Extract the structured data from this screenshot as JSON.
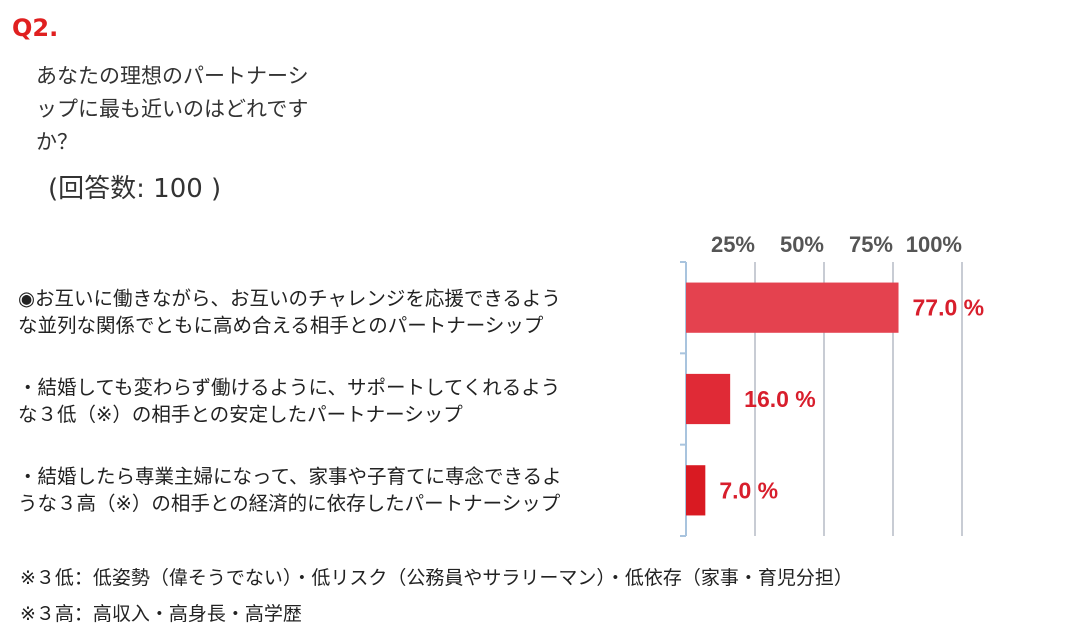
{
  "question_number": "Q2.",
  "question_lines": [
    "あなたの理想のパートナーシ",
    "ップに最も近いのはどれです",
    "か？"
  ],
  "respondents": "(回答数: 100 )",
  "chart_data": {
    "type": "bar",
    "orientation": "horizontal",
    "categories": [
      [
        "◉お互いに働きながら、お互いのチャレンジを応援できるよう",
        "な並列な関係でともに高め合える相手とのパートナーシップ"
      ],
      [
        "・結婚しても変わらず働けるように、サポートしてくれるよう",
        "な３低（※）の相手との安定したパートナーシップ"
      ],
      [
        "・結婚したら専業主婦になって、家事や子育てに専念できるよ",
        "うな３高（※）の相手との経済的に依存したパートナーシップ"
      ]
    ],
    "values": [
      77.0,
      16.0,
      7.0
    ],
    "value_labels": [
      "77.0 %",
      "16.0 %",
      "7.0 %"
    ],
    "ticks": [
      "25%",
      "50%",
      "75%",
      "100%"
    ],
    "tick_values": [
      25,
      50,
      75,
      100
    ],
    "xlim": [
      0,
      100
    ],
    "grid": true,
    "bar_colors": [
      "#e4424f",
      "#e02a36",
      "#d91a22"
    ],
    "label_color": "#d81e2c"
  },
  "notes": [
    "※３低：低姿勢（偉そうでない）・低リスク（公務員やサラリーマン）・低依存（家事・育児分担）",
    "※３高：高収入・高身長・高学歴"
  ]
}
